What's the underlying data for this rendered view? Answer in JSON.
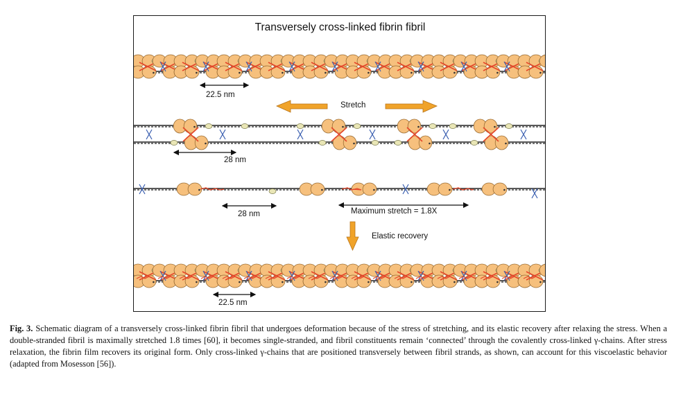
{
  "figure": {
    "title": "Transversely cross-linked fibrin fibril",
    "labels": {
      "row1_spacing": "22.5 nm",
      "stretch": "Stretch",
      "row2_spacing": "28 nm",
      "row3_spacing": "28 nm",
      "max_stretch": "Maximum stretch = 1.8X",
      "elastic_recovery": "Elastic recovery",
      "row4_spacing": "22.5 nm"
    },
    "colors": {
      "nodule_fill": "#f6c07d",
      "nodule_stroke": "#9a6d35",
      "crosslink": "#e4462a",
      "arrow_orange": "#f0a32a",
      "strand": "#222222",
      "gamma_chain": "#3a5fb0",
      "central_domain": "#e9e6b6"
    }
  },
  "caption": {
    "fig_label": "Fig. 3.",
    "text": "Schematic diagram of a transversely cross-linked fibrin fibril that undergoes deformation because of the stress of stretching, and its elastic recovery after relaxing the stress. When a double-stranded fibril is maximally stretched 1.8 times [60], it becomes single-stranded, and fibril constituents remain ‘connected’ through the covalently cross-linked γ-chains. After stress relaxation, the fibrin film recovers its original form. Only cross-linked γ-chains that are positioned transversely between fibril strands, as shown, can account for this viscoelastic behavior (adapted from Mosesson [56])."
  }
}
